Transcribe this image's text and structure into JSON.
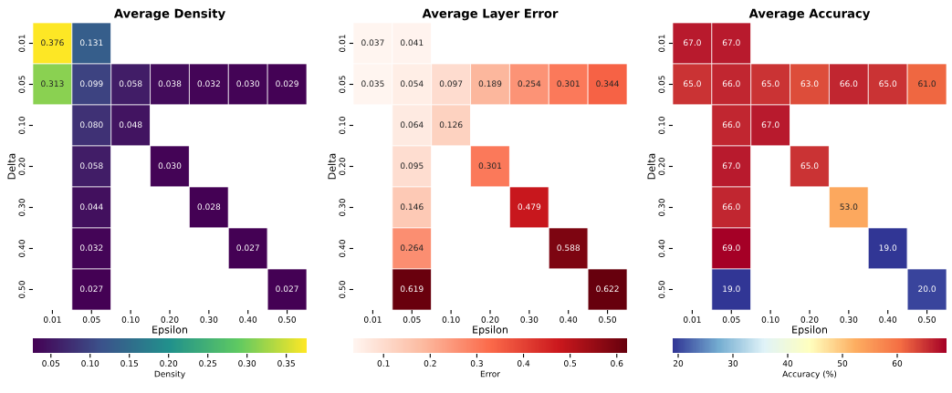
{
  "chart_data": [
    {
      "type": "heatmap",
      "title": "Average Density",
      "xlabel": "Epsilon",
      "ylabel": "Delta",
      "clabel": "Density",
      "categories": [
        "0.01",
        "0.05",
        "0.10",
        "0.20",
        "0.30",
        "0.40",
        "0.50"
      ],
      "y_categories": [
        "0.01",
        "0.05",
        "0.10",
        "0.20",
        "0.30",
        "0.40",
        "0.50"
      ],
      "cells": [
        [
          0.376,
          0.131,
          null,
          null,
          null,
          null,
          null
        ],
        [
          0.313,
          0.099,
          0.058,
          0.038,
          0.032,
          0.03,
          0.029
        ],
        [
          null,
          0.08,
          0.048,
          null,
          null,
          null,
          null
        ],
        [
          null,
          0.058,
          null,
          0.03,
          null,
          null,
          null
        ],
        [
          null,
          0.044,
          null,
          null,
          0.028,
          null,
          null
        ],
        [
          null,
          0.032,
          null,
          null,
          null,
          0.027,
          null
        ],
        [
          null,
          0.027,
          null,
          null,
          null,
          null,
          0.027
        ]
      ],
      "cell_labels": [
        [
          "0.376",
          "0.131",
          null,
          null,
          null,
          null,
          null
        ],
        [
          "0.313",
          "0.099",
          "0.058",
          "0.038",
          "0.032",
          "0.030",
          "0.029"
        ],
        [
          null,
          "0.080",
          "0.048",
          null,
          null,
          null,
          null
        ],
        [
          null,
          "0.058",
          null,
          "0.030",
          null,
          null,
          null
        ],
        [
          null,
          "0.044",
          null,
          null,
          "0.028",
          null,
          null
        ],
        [
          null,
          "0.032",
          null,
          null,
          null,
          "0.027",
          null
        ],
        [
          null,
          "0.027",
          null,
          null,
          null,
          null,
          "0.027"
        ]
      ],
      "colors": [
        "#440154",
        "#3b528b",
        "#21918c",
        "#5ec962",
        "#fde725"
      ],
      "clim": [
        0.027,
        0.376
      ],
      "cticks": [
        0.05,
        {
          "value": 0.1,
          "label": "0.10"
        },
        0.15,
        {
          "value": 0.2,
          "label": "0.20"
        },
        0.25,
        {
          "value": 0.3,
          "label": "0.30"
        },
        0.35
      ]
    },
    {
      "type": "heatmap",
      "title": "Average Layer Error",
      "xlabel": "Epsilon",
      "ylabel": "Delta",
      "clabel": "Error",
      "categories": [
        "0.01",
        "0.05",
        "0.10",
        "0.20",
        "0.30",
        "0.40",
        "0.50"
      ],
      "y_categories": [
        "0.01",
        "0.05",
        "0.10",
        "0.20",
        "0.30",
        "0.40",
        "0.50"
      ],
      "cells": [
        [
          0.037,
          0.041,
          null,
          null,
          null,
          null,
          null
        ],
        [
          0.035,
          0.054,
          0.097,
          0.189,
          0.254,
          0.301,
          0.344
        ],
        [
          null,
          0.064,
          0.126,
          null,
          null,
          null,
          null
        ],
        [
          null,
          0.095,
          null,
          0.301,
          null,
          null,
          null
        ],
        [
          null,
          0.146,
          null,
          null,
          0.479,
          null,
          null
        ],
        [
          null,
          0.264,
          null,
          null,
          null,
          0.588,
          null
        ],
        [
          null,
          0.619,
          null,
          null,
          null,
          null,
          0.622
        ]
      ],
      "cell_labels": [
        [
          "0.037",
          "0.041",
          null,
          null,
          null,
          null,
          null
        ],
        [
          "0.035",
          "0.054",
          "0.097",
          "0.189",
          "0.254",
          "0.301",
          "0.344"
        ],
        [
          null,
          "0.064",
          "0.126",
          null,
          null,
          null,
          null
        ],
        [
          null,
          "0.095",
          null,
          "0.301",
          null,
          null,
          null
        ],
        [
          null,
          "0.146",
          null,
          null,
          "0.479",
          null,
          null
        ],
        [
          null,
          "0.264",
          null,
          null,
          null,
          "0.588",
          null
        ],
        [
          null,
          "0.619",
          null,
          null,
          null,
          null,
          "0.622"
        ]
      ],
      "colors": [
        "#fff5f0",
        "#fcbba1",
        "#fb6a4a",
        "#cb181d",
        "#67000d"
      ],
      "clim": [
        0.035,
        0.622
      ],
      "cticks": [
        0.1,
        0.2,
        0.3,
        0.4,
        0.5,
        0.6
      ]
    },
    {
      "type": "heatmap",
      "title": "Average Accuracy",
      "xlabel": "Epsilon",
      "ylabel": "Delta",
      "clabel": "Accuracy (%)",
      "categories": [
        "0.01",
        "0.05",
        "0.10",
        "0.20",
        "0.30",
        "0.40",
        "0.50"
      ],
      "y_categories": [
        "0.01",
        "0.05",
        "0.10",
        "0.20",
        "0.30",
        "0.40",
        "0.50"
      ],
      "cells": [
        [
          67,
          67,
          null,
          null,
          null,
          null,
          null
        ],
        [
          65,
          66,
          65,
          63,
          66,
          65,
          61
        ],
        [
          null,
          66,
          67,
          null,
          null,
          null,
          null
        ],
        [
          null,
          67,
          null,
          65,
          null,
          null,
          null
        ],
        [
          null,
          66,
          null,
          null,
          53,
          null,
          null
        ],
        [
          null,
          69,
          null,
          null,
          null,
          19,
          null
        ],
        [
          null,
          19,
          null,
          null,
          null,
          null,
          20
        ]
      ],
      "cell_labels": [
        [
          "67.0",
          "67.0",
          null,
          null,
          null,
          null,
          null
        ],
        [
          "65.0",
          "66.0",
          "65.0",
          "63.0",
          "66.0",
          "65.0",
          "61.0"
        ],
        [
          null,
          "66.0",
          "67.0",
          null,
          null,
          null,
          null
        ],
        [
          null,
          "67.0",
          null,
          "65.0",
          null,
          null,
          null
        ],
        [
          null,
          "66.0",
          null,
          null,
          "53.0",
          null,
          null
        ],
        [
          null,
          "69.0",
          null,
          null,
          null,
          "19.0",
          null
        ],
        [
          null,
          "19.0",
          null,
          null,
          null,
          null,
          "20.0"
        ]
      ],
      "colors": [
        "#313695",
        "#74add1",
        "#e0f3f8",
        "#ffffbf",
        "#fdae61",
        "#f46d43",
        "#a50026"
      ],
      "clim": [
        19,
        69
      ],
      "cticks": [
        20,
        30,
        40,
        50,
        60
      ]
    }
  ]
}
